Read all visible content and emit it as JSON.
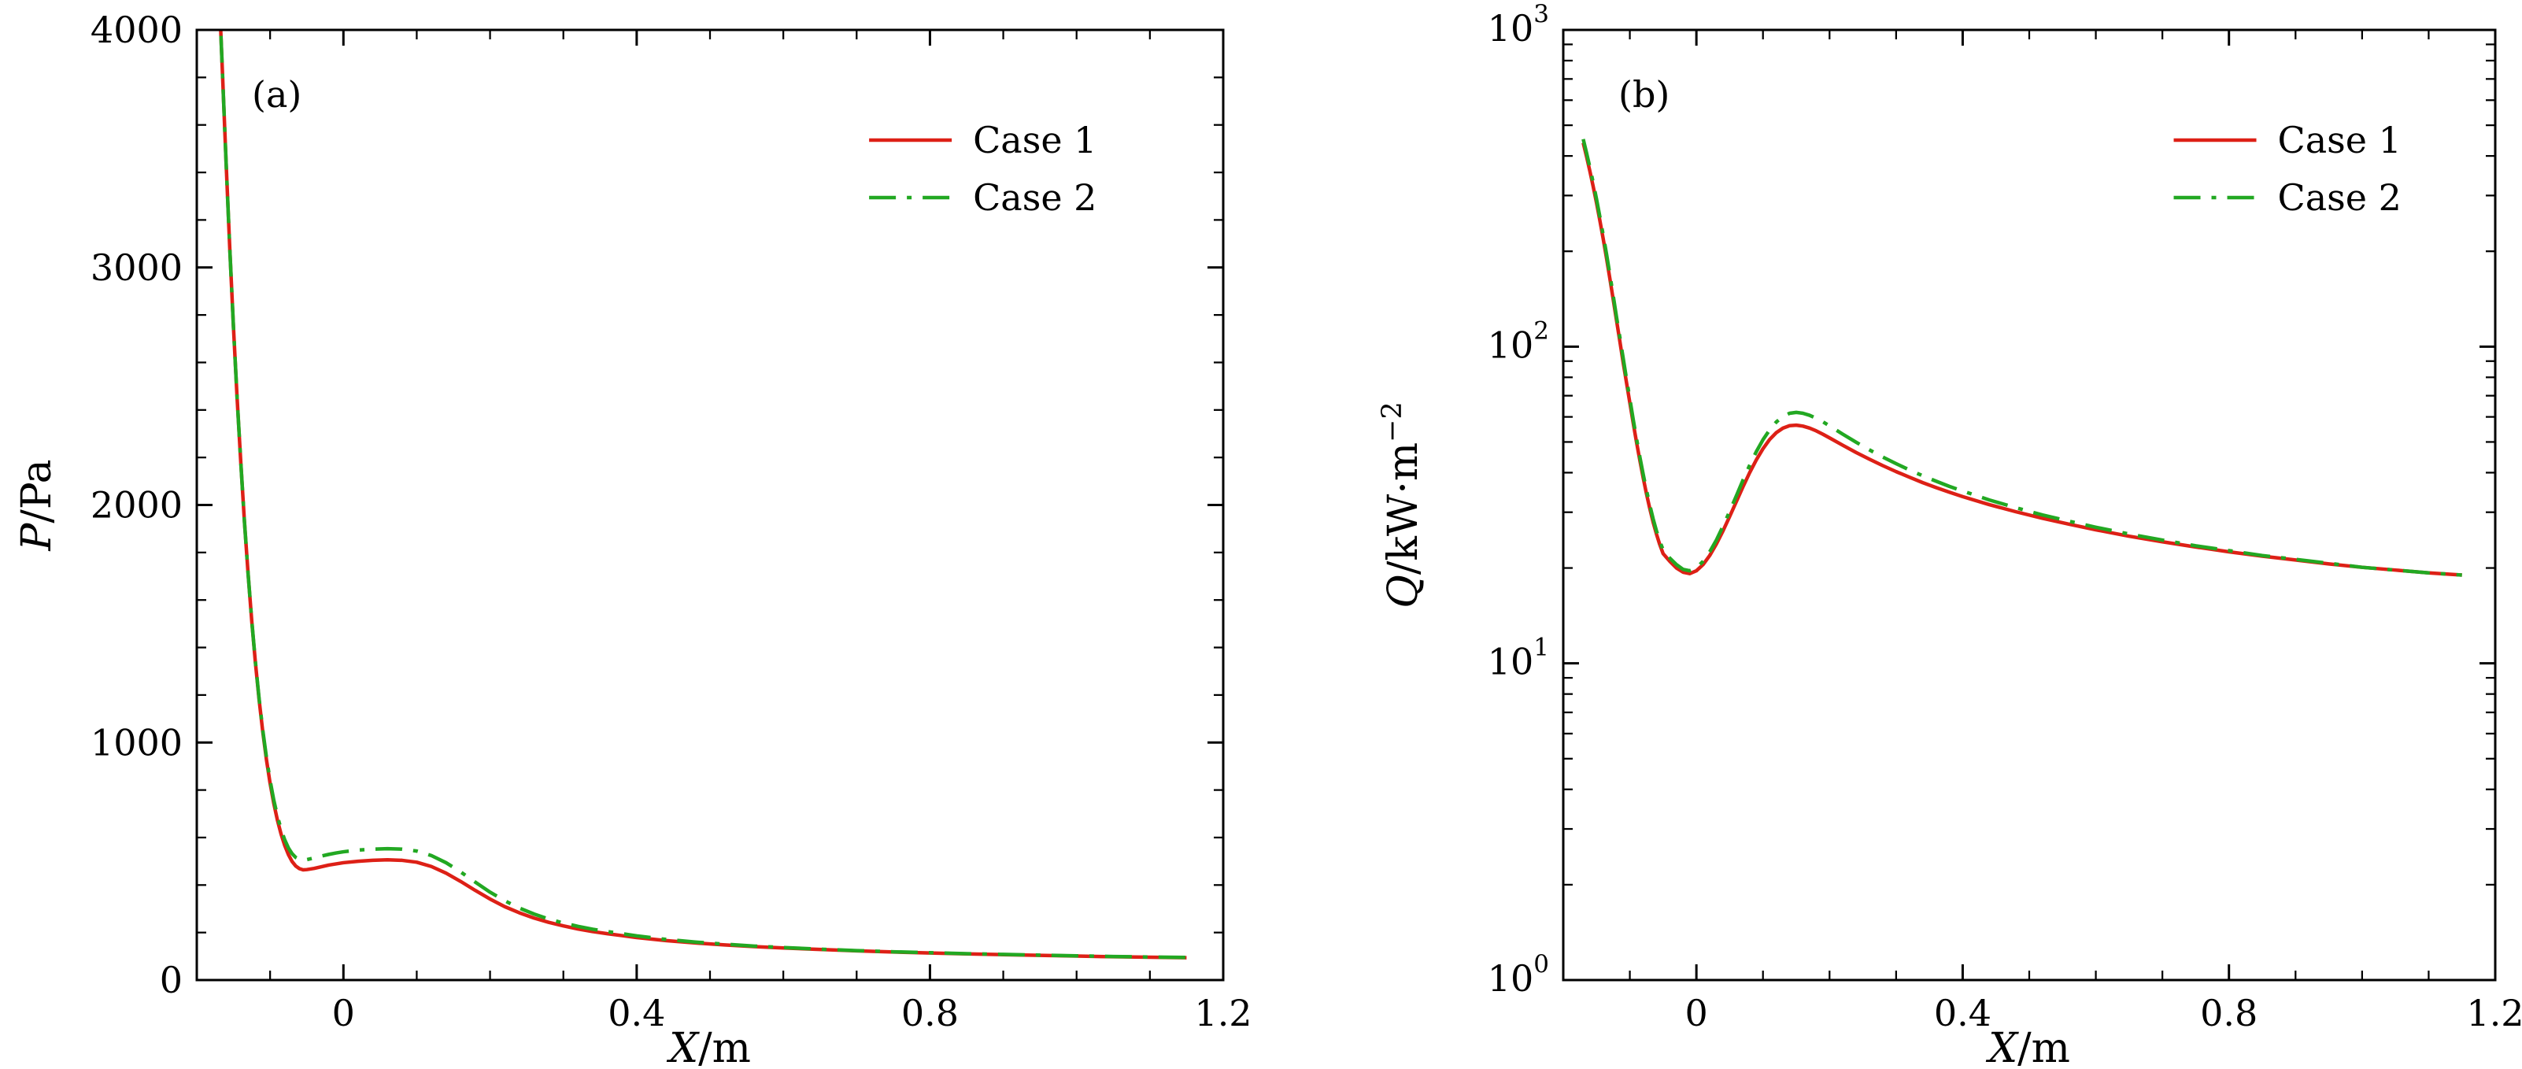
{
  "figure": {
    "background": "#ffffff",
    "text_color": "#000000",
    "axis_color": "#000000"
  },
  "chart_data": [
    {
      "type": "line",
      "panel_label": "(a)",
      "xlabel": {
        "var": "X",
        "unit": "/m",
        "sup": ""
      },
      "ylabel": {
        "var": "P",
        "unit": "/Pa",
        "sup": ""
      },
      "xscale": "linear",
      "yscale": "linear",
      "xlim": [
        -0.2,
        1.2
      ],
      "ylim": [
        0,
        4000
      ],
      "xticks": [
        0,
        0.4,
        0.8,
        1.2
      ],
      "xtick_labels": [
        "0",
        "0.4",
        "0.8",
        "1.2"
      ],
      "x_minor_step": 0.1,
      "yticks": [
        0,
        1000,
        2000,
        3000,
        4000
      ],
      "ytick_labels": [
        "0",
        "1000",
        "2000",
        "3000",
        "4000"
      ],
      "y_minor_step": 200,
      "grid": false,
      "legend": {
        "position": "top-right",
        "entries": [
          {
            "label": "Case 1",
            "color": "#dd2016",
            "dash": "solid"
          },
          {
            "label": "Case 2",
            "color": "#22a822",
            "dash": "dashdot"
          }
        ]
      },
      "x": [
        -0.17,
        -0.165,
        -0.16,
        -0.155,
        -0.15,
        -0.145,
        -0.14,
        -0.135,
        -0.13,
        -0.125,
        -0.12,
        -0.115,
        -0.11,
        -0.105,
        -0.1,
        -0.095,
        -0.09,
        -0.085,
        -0.08,
        -0.075,
        -0.07,
        -0.065,
        -0.06,
        -0.055,
        -0.05,
        -0.04,
        -0.03,
        -0.02,
        -0.01,
        0,
        0.02,
        0.04,
        0.06,
        0.08,
        0.1,
        0.12,
        0.14,
        0.16,
        0.18,
        0.2,
        0.22,
        0.24,
        0.26,
        0.28,
        0.3,
        0.32,
        0.34,
        0.36,
        0.38,
        0.4,
        0.44,
        0.48,
        0.52,
        0.56,
        0.6,
        0.65,
        0.7,
        0.75,
        0.8,
        0.85,
        0.9,
        0.95,
        1,
        1.05,
        1.1,
        1.15
      ],
      "series": [
        {
          "name": "Case 1",
          "color": "#dd2016",
          "dash": "solid",
          "y": [
            4200,
            3820,
            3440,
            3080,
            2750,
            2450,
            2180,
            1930,
            1710,
            1510,
            1335,
            1180,
            1045,
            928,
            828,
            744,
            673,
            614,
            566,
            528,
            499,
            480,
            469,
            464,
            465,
            470,
            477,
            484,
            489,
            494,
            500,
            504,
            506,
            504,
            496,
            478,
            450,
            415,
            377,
            341,
            309,
            283,
            261,
            243,
            228,
            215,
            204,
            195,
            187,
            179,
            166,
            156,
            148,
            141,
            135,
            129,
            123,
            118,
            114,
            110,
            107,
            104,
            101,
            98,
            96,
            94
          ]
        },
        {
          "name": "Case 2",
          "color": "#22a822",
          "dash": "dashdot",
          "y": [
            4200,
            3820,
            3440,
            3080,
            2750,
            2450,
            2180,
            1930,
            1710,
            1512,
            1338,
            1185,
            1052,
            938,
            840,
            758,
            690,
            634,
            590,
            556,
            532,
            516,
            508,
            505,
            507,
            514,
            522,
            529,
            535,
            540,
            547,
            551,
            553,
            551,
            543,
            524,
            494,
            455,
            412,
            370,
            334,
            303,
            278,
            257,
            240,
            226,
            214,
            204,
            195,
            186,
            171,
            160,
            151,
            143,
            137,
            130,
            124,
            119,
            115,
            111,
            108,
            105,
            102,
            99,
            97,
            95
          ]
        }
      ]
    },
    {
      "type": "line",
      "panel_label": "(b)",
      "xlabel": {
        "var": "X",
        "unit": "/m",
        "sup": ""
      },
      "ylabel": {
        "var": "Q",
        "unit": "/kW·m",
        "sup": "−2"
      },
      "xscale": "linear",
      "yscale": "log",
      "xlim": [
        -0.2,
        1.2
      ],
      "ylim": [
        1,
        1000
      ],
      "xticks": [
        0,
        0.4,
        0.8,
        1.2
      ],
      "xtick_labels": [
        "0",
        "0.4",
        "0.8",
        "1.2"
      ],
      "x_minor_step": 0.1,
      "yticks": [
        1,
        10,
        100,
        1000
      ],
      "ytick_labels": [
        "10^0",
        "10^1",
        "10^2",
        "10^3"
      ],
      "grid": false,
      "legend": {
        "position": "top-right",
        "entries": [
          {
            "label": "Case 1",
            "color": "#dd2016",
            "dash": "solid"
          },
          {
            "label": "Case 2",
            "color": "#22a822",
            "dash": "dashdot"
          }
        ]
      },
      "x": [
        -0.17,
        -0.165,
        -0.16,
        -0.155,
        -0.15,
        -0.145,
        -0.14,
        -0.135,
        -0.13,
        -0.125,
        -0.12,
        -0.115,
        -0.11,
        -0.105,
        -0.1,
        -0.095,
        -0.09,
        -0.085,
        -0.08,
        -0.075,
        -0.07,
        -0.065,
        -0.06,
        -0.055,
        -0.05,
        -0.04,
        -0.03,
        -0.02,
        -0.01,
        0,
        0.01,
        0.02,
        0.03,
        0.04,
        0.05,
        0.06,
        0.07,
        0.08,
        0.09,
        0.1,
        0.11,
        0.12,
        0.13,
        0.14,
        0.15,
        0.16,
        0.17,
        0.18,
        0.19,
        0.2,
        0.22,
        0.24,
        0.26,
        0.28,
        0.3,
        0.32,
        0.34,
        0.36,
        0.38,
        0.4,
        0.44,
        0.48,
        0.52,
        0.56,
        0.6,
        0.65,
        0.7,
        0.75,
        0.8,
        0.85,
        0.9,
        0.95,
        1,
        1.05,
        1.1,
        1.15
      ],
      "series": [
        {
          "name": "Case 1",
          "color": "#dd2016",
          "dash": "solid",
          "y": [
            440,
            398,
            358,
            320,
            284,
            250,
            219,
            190,
            164,
            141,
            121,
            104,
            89,
            77,
            66.5,
            57.5,
            50,
            43.8,
            38.6,
            34.3,
            30.8,
            27.9,
            25.6,
            23.7,
            22.2,
            21,
            20,
            19.4,
            19.2,
            19.6,
            20.5,
            21.9,
            23.8,
            26.2,
            29.1,
            32.4,
            36.1,
            40,
            43.9,
            47.6,
            50.9,
            53.5,
            55.3,
            56.3,
            56.5,
            56.1,
            55.3,
            54.2,
            52.9,
            51.5,
            48.8,
            46.3,
            44.1,
            42.1,
            40.3,
            38.7,
            37.2,
            35.9,
            34.7,
            33.6,
            31.7,
            30.1,
            28.7,
            27.5,
            26.4,
            25.2,
            24.2,
            23.3,
            22.5,
            21.8,
            21.2,
            20.6,
            20.1,
            19.7,
            19.3,
            19
          ]
        },
        {
          "name": "Case 2",
          "color": "#22a822",
          "dash": "dashdot",
          "y": [
            452,
            409,
            368,
            329,
            292,
            257,
            225,
            196,
            169,
            145,
            124,
            107,
            92,
            79,
            68.5,
            59,
            51.3,
            44.9,
            39.6,
            35.2,
            31.6,
            28.6,
            26.2,
            24.3,
            22.8,
            21.5,
            20.5,
            19.8,
            19.6,
            20,
            21,
            22.5,
            24.5,
            27.1,
            30.2,
            33.8,
            37.9,
            42.2,
            46.6,
            50.8,
            54.6,
            57.8,
            60.2,
            61.6,
            62,
            61.6,
            60.7,
            59.4,
            57.9,
            56.2,
            52.9,
            49.9,
            47.2,
            44.8,
            42.7,
            40.8,
            39.1,
            37.6,
            36.2,
            35,
            32.8,
            31,
            29.4,
            28.1,
            26.9,
            25.6,
            24.5,
            23.5,
            22.7,
            21.9,
            21.3,
            20.7,
            20.1,
            19.7,
            19.3,
            19
          ]
        }
      ]
    }
  ]
}
